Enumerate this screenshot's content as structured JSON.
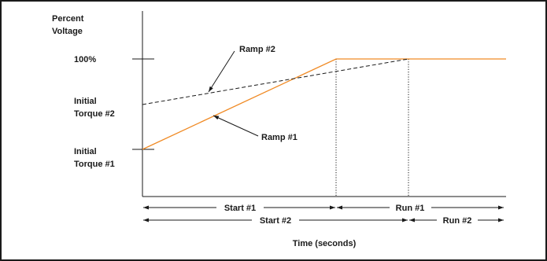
{
  "chart_data": {
    "type": "line",
    "ylabel": [
      "Percent",
      "Voltage"
    ],
    "xlabel": "Time (seconds)",
    "y_tick_labels": {
      "full": "100%",
      "initial_torque_2": [
        "Initial",
        "Torque #2"
      ],
      "initial_torque_1": [
        "Initial",
        "Torque #1"
      ]
    },
    "series": [
      {
        "name": "Ramp #1",
        "line_style": "solid",
        "color": "#F08A24",
        "points": [
          {
            "t": "0",
            "v": "Initial Torque #1"
          },
          {
            "t": "end of Start #1",
            "v": "100%"
          },
          {
            "t": "end of Run",
            "v": "100%"
          }
        ]
      },
      {
        "name": "Ramp #2",
        "line_style": "dashed",
        "color": "#1a1a1a",
        "points": [
          {
            "t": "0",
            "v": "Initial Torque #2"
          },
          {
            "t": "end of Start #2",
            "v": "100%"
          }
        ]
      }
    ],
    "phases": [
      {
        "label": "Start #1",
        "row": 1
      },
      {
        "label": "Run #1",
        "row": 1
      },
      {
        "label": "Start #2",
        "row": 2
      },
      {
        "label": "Run #2",
        "row": 2
      }
    ],
    "grid": false,
    "legend": "none"
  }
}
